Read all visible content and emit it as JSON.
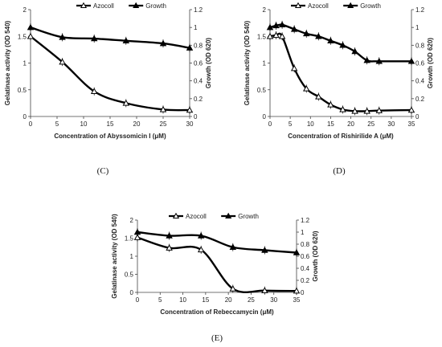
{
  "chart_data": [
    {
      "type": "line",
      "panel_label": "(C)",
      "xlabel": "Concentration of  Abyssomicin I  (μM)",
      "ylabel_left": "Gelatinase activity (OD 540)",
      "ylabel_right": "Growth (OD 620)",
      "xlim": [
        0,
        30
      ],
      "xticks": [
        0,
        5,
        10,
        15,
        20,
        25,
        30
      ],
      "ylim_left": [
        0,
        2
      ],
      "yticks_left": [
        0,
        0.5,
        1,
        1.5,
        2
      ],
      "ylim_right": [
        0,
        1.2
      ],
      "yticks_right": [
        0,
        0.2,
        0.4,
        0.6,
        0.8,
        1,
        1.2
      ],
      "legend_position": "top",
      "series": [
        {
          "name": "Azocoll",
          "axis": "left",
          "marker": "open-triangle",
          "x": [
            0,
            6,
            12,
            18,
            25,
            30
          ],
          "values": [
            1.5,
            1.02,
            0.47,
            0.25,
            0.13,
            0.12
          ]
        },
        {
          "name": "Growth",
          "axis": "right",
          "marker": "filled-triangle",
          "x": [
            0,
            6,
            12,
            18,
            25,
            30
          ],
          "values": [
            1.0,
            0.89,
            0.875,
            0.85,
            0.82,
            0.77
          ]
        }
      ]
    },
    {
      "type": "line",
      "panel_label": "(D)",
      "xlabel": "Concentration of  Rishirilide A  (μM)",
      "ylabel_left": "Gelatinase activity (OD 540)",
      "ylabel_right": "Growth (OD 620)",
      "xlim": [
        0,
        35
      ],
      "xticks": [
        0,
        5,
        10,
        15,
        20,
        25,
        30,
        35
      ],
      "ylim_left": [
        0,
        2
      ],
      "yticks_left": [
        0,
        0.5,
        1,
        1.5,
        2
      ],
      "ylim_right": [
        0,
        1.2
      ],
      "yticks_right": [
        0,
        0.2,
        0.4,
        0.6,
        0.8,
        1,
        1.2
      ],
      "legend_position": "top",
      "series": [
        {
          "name": "Azocoll",
          "axis": "left",
          "marker": "open-triangle",
          "x": [
            0,
            1.5,
            3,
            6,
            9,
            12,
            15,
            18,
            21,
            24,
            27,
            35
          ],
          "values": [
            1.5,
            1.52,
            1.5,
            0.9,
            0.52,
            0.37,
            0.22,
            0.13,
            0.1,
            0.1,
            0.11,
            0.12
          ]
        },
        {
          "name": "Growth",
          "axis": "right",
          "marker": "filled-triangle",
          "x": [
            0,
            1.5,
            3,
            6,
            9,
            12,
            15,
            18,
            21,
            24,
            27,
            35
          ],
          "values": [
            1.0,
            1.02,
            1.03,
            0.98,
            0.93,
            0.9,
            0.85,
            0.8,
            0.73,
            0.63,
            0.62,
            0.62
          ]
        }
      ]
    },
    {
      "type": "line",
      "panel_label": "(E)",
      "xlabel": "Concentration of  Rebeccamycin  (μM)",
      "ylabel_left": "Gelatinase activity (OD 540)",
      "ylabel_right": "Growth (OD 620)",
      "xlim": [
        0,
        35
      ],
      "xticks": [
        0,
        5,
        10,
        15,
        20,
        25,
        30,
        35
      ],
      "ylim_left": [
        0,
        2
      ],
      "yticks_left": [
        0,
        0.5,
        1,
        1.5,
        2
      ],
      "ylim_right": [
        0,
        1.2
      ],
      "yticks_right": [
        0,
        0.2,
        0.4,
        0.6,
        0.8,
        1,
        1.2
      ],
      "legend_position": "top",
      "series": [
        {
          "name": "Azocoll",
          "axis": "left",
          "marker": "open-triangle",
          "x": [
            0,
            7,
            14,
            21,
            28,
            35
          ],
          "values": [
            1.52,
            1.23,
            1.18,
            0.1,
            0.05,
            0.04
          ]
        },
        {
          "name": "Growth",
          "axis": "right",
          "marker": "filled-triangle",
          "x": [
            0,
            7,
            14,
            21,
            28,
            35
          ],
          "values": [
            1.0,
            0.94,
            0.94,
            0.75,
            0.7,
            0.66
          ]
        }
      ]
    }
  ]
}
